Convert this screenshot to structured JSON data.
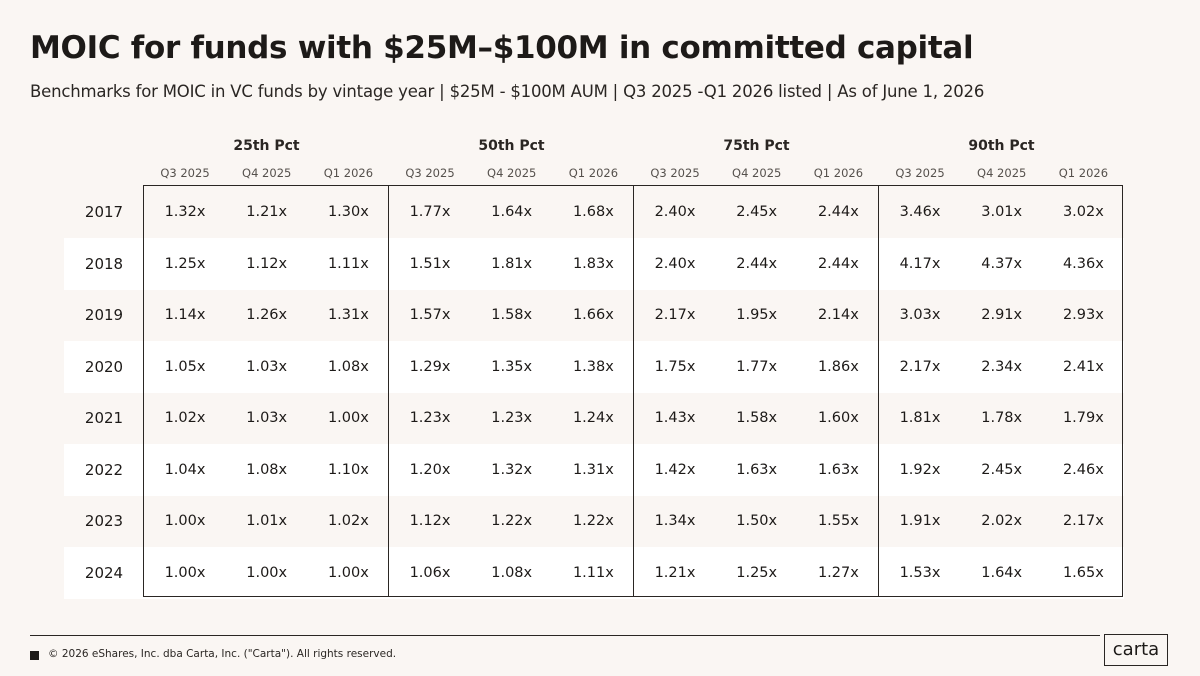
{
  "title": "MOIC for funds with $25M–$100M in committed capital",
  "subtitle": "Benchmarks for MOIC in VC funds by vintage year | $25M - $100M AUM | Q3 2025 -Q1 2026 listed | As of June 1, 2026",
  "footer": {
    "copyright": "© 2026 eShares, Inc. dba Carta, Inc. (\"Carta\"). All rights reserved.",
    "logo": "carta"
  },
  "chart_data": {
    "type": "table",
    "groups": [
      "25th Pct",
      "50th Pct",
      "75th Pct",
      "90th Pct"
    ],
    "quarters": [
      "Q3 2025",
      "Q4 2025",
      "Q1 2026"
    ],
    "rows": [
      {
        "year": "2017",
        "values": [
          "1.32x",
          "1.21x",
          "1.30x",
          "1.77x",
          "1.64x",
          "1.68x",
          "2.40x",
          "2.45x",
          "2.44x",
          "3.46x",
          "3.01x",
          "3.02x"
        ]
      },
      {
        "year": "2018",
        "values": [
          "1.25x",
          "1.12x",
          "1.11x",
          "1.51x",
          "1.81x",
          "1.83x",
          "2.40x",
          "2.44x",
          "2.44x",
          "4.17x",
          "4.37x",
          "4.36x"
        ]
      },
      {
        "year": "2019",
        "values": [
          "1.14x",
          "1.26x",
          "1.31x",
          "1.57x",
          "1.58x",
          "1.66x",
          "2.17x",
          "1.95x",
          "2.14x",
          "3.03x",
          "2.91x",
          "2.93x"
        ]
      },
      {
        "year": "2020",
        "values": [
          "1.05x",
          "1.03x",
          "1.08x",
          "1.29x",
          "1.35x",
          "1.38x",
          "1.75x",
          "1.77x",
          "1.86x",
          "2.17x",
          "2.34x",
          "2.41x"
        ]
      },
      {
        "year": "2021",
        "values": [
          "1.02x",
          "1.03x",
          "1.00x",
          "1.23x",
          "1.23x",
          "1.24x",
          "1.43x",
          "1.58x",
          "1.60x",
          "1.81x",
          "1.78x",
          "1.79x"
        ]
      },
      {
        "year": "2022",
        "values": [
          "1.04x",
          "1.08x",
          "1.10x",
          "1.20x",
          "1.32x",
          "1.31x",
          "1.42x",
          "1.63x",
          "1.63x",
          "1.92x",
          "2.45x",
          "2.46x"
        ]
      },
      {
        "year": "2023",
        "values": [
          "1.00x",
          "1.01x",
          "1.02x",
          "1.12x",
          "1.22x",
          "1.22x",
          "1.34x",
          "1.50x",
          "1.55x",
          "1.91x",
          "2.02x",
          "2.17x"
        ]
      },
      {
        "year": "2024",
        "values": [
          "1.00x",
          "1.00x",
          "1.00x",
          "1.06x",
          "1.08x",
          "1.11x",
          "1.21x",
          "1.25x",
          "1.27x",
          "1.53x",
          "1.64x",
          "1.65x"
        ]
      }
    ]
  }
}
